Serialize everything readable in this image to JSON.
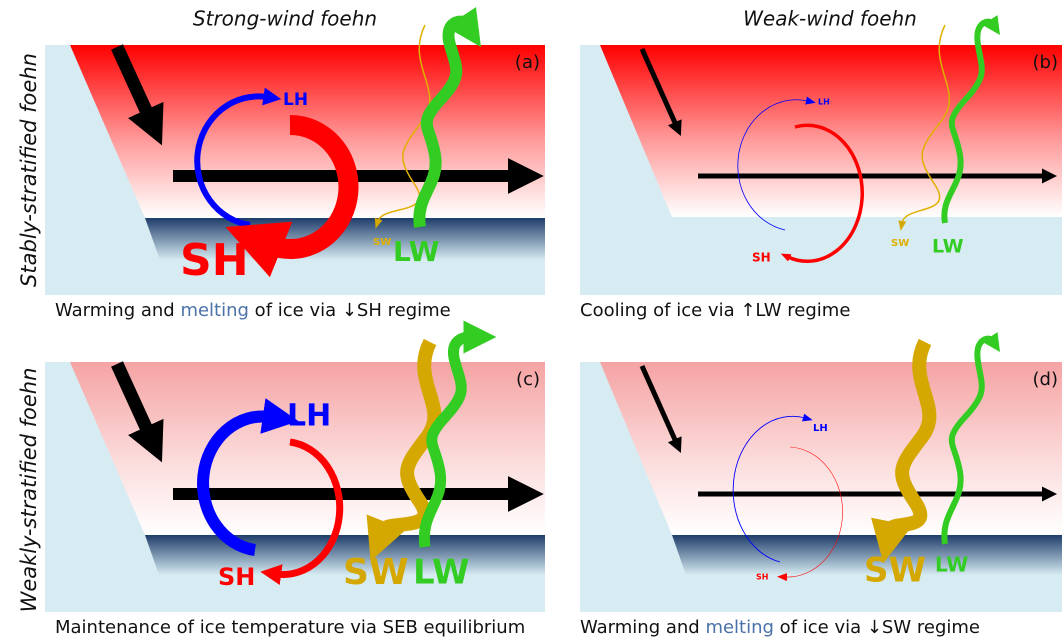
{
  "column_headers": [
    "Strong-wind foehn",
    "Weak-wind foehn"
  ],
  "row_labels": [
    "Stably-stratified foehn",
    "Weakly-stratified foehn"
  ],
  "panels": [
    {
      "label": "(a)",
      "lh": "LH",
      "sh": "SH",
      "sw": "SW",
      "lw": "LW",
      "caption": [
        "Warming and ",
        "melting",
        " of ice via ↓SH regime"
      ]
    },
    {
      "label": "(b)",
      "lh": "LH",
      "sh": "SH",
      "sw": "SW",
      "lw": "LW",
      "caption": [
        "Cooling of ice via ↑LW regime"
      ]
    },
    {
      "label": "(c)",
      "lh": "LH",
      "sh": "SH",
      "sw": "SW",
      "lw": "LW",
      "caption": [
        "Maintenance of ice temperature via SEB equilibrium"
      ]
    },
    {
      "label": "(d)",
      "lh": "LH",
      "sh": "SH",
      "sw": "SW",
      "lw": "LW",
      "caption": [
        "Warming and ",
        "melting",
        " of ice via ↓SW regime"
      ]
    }
  ]
}
